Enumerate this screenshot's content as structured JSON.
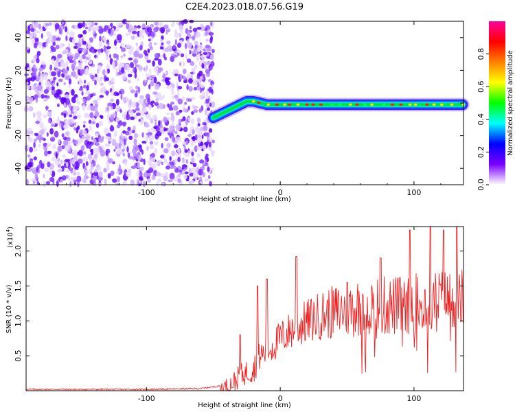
{
  "title": "C2E4.2023.018.07.56.G19",
  "chart_data": [
    {
      "type": "heatmap",
      "xlabel": "Height of straight line (km)",
      "ylabel": "Frequency (Hz)",
      "xlim": [
        -190,
        137
      ],
      "ylim": [
        -50,
        50
      ],
      "xticks": [
        -100,
        0,
        100
      ],
      "yticks": [
        -40,
        -20,
        0,
        20,
        40
      ],
      "noise_region_x": [
        -190,
        -50
      ],
      "signal_track": {
        "x": [
          -50,
          -45,
          -40,
          -35,
          -30,
          -25,
          -20,
          -15,
          -10,
          -5,
          0,
          20,
          40,
          60,
          80,
          100,
          120,
          137
        ],
        "frequency": [
          -9,
          -7,
          -5,
          -3,
          -1,
          1,
          1,
          0,
          -1,
          -1,
          -1,
          -1,
          -1,
          -1,
          -1,
          -1,
          -1,
          -1
        ]
      },
      "colorbar": {
        "label": "Normalized spectral amplitude",
        "range": [
          0,
          1
        ],
        "ticks": [
          0.0,
          0.2,
          0.4,
          0.6,
          0.8
        ],
        "colors": [
          "#ffffff",
          "#7b00ff",
          "#0000ff",
          "#00ffff",
          "#00ff00",
          "#ffff00",
          "#ff8000",
          "#ff0000",
          "#ff00a0"
        ]
      },
      "grid": false
    },
    {
      "type": "line",
      "xlabel": "Height of straight line (km)",
      "ylabel": "SNR (10 * v/v)",
      "multiplier_label": "(x10",
      "multiplier_exponent": "4",
      "multiplier_close": ")",
      "xlim": [
        -190,
        137
      ],
      "ylim": [
        0,
        2.35
      ],
      "xticks": [
        -100,
        0,
        100
      ],
      "yticks": [
        0.5,
        1.0,
        1.5,
        2.0
      ],
      "ytick_labels": [
        "0.5",
        "1.0",
        "1.5",
        "2.0"
      ],
      "series": [
        {
          "color": "#ee2222",
          "envelope": {
            "x": [
              -190,
              -150,
              -100,
              -60,
              -40,
              -35,
              -30,
              -25,
              -20,
              -15,
              -10,
              -5,
              0,
              10,
              20,
              30,
              40,
              50,
              60,
              70,
              80,
              90,
              100,
              110,
              120,
              130,
              137
            ],
            "y": [
              0.02,
              0.02,
              0.02,
              0.03,
              0.08,
              0.15,
              0.25,
              0.3,
              0.35,
              0.55,
              0.6,
              0.7,
              0.8,
              0.95,
              1.05,
              1.15,
              1.2,
              1.25,
              1.3,
              1.3,
              1.3,
              1.3,
              1.35,
              1.35,
              1.4,
              1.4,
              1.4
            ]
          },
          "peaks": [
            {
              "x": -30,
              "y": 0.8
            },
            {
              "x": -17,
              "y": 1.5
            },
            {
              "x": -10,
              "y": 1.6
            },
            {
              "x": 12,
              "y": 1.92
            },
            {
              "x": 50,
              "y": 1.55
            },
            {
              "x": 75,
              "y": 1.9
            },
            {
              "x": 97,
              "y": 2.3
            },
            {
              "x": 112,
              "y": 2.35
            },
            {
              "x": 122,
              "y": 2.3
            },
            {
              "x": 132,
              "y": 2.35
            }
          ]
        }
      ]
    }
  ]
}
